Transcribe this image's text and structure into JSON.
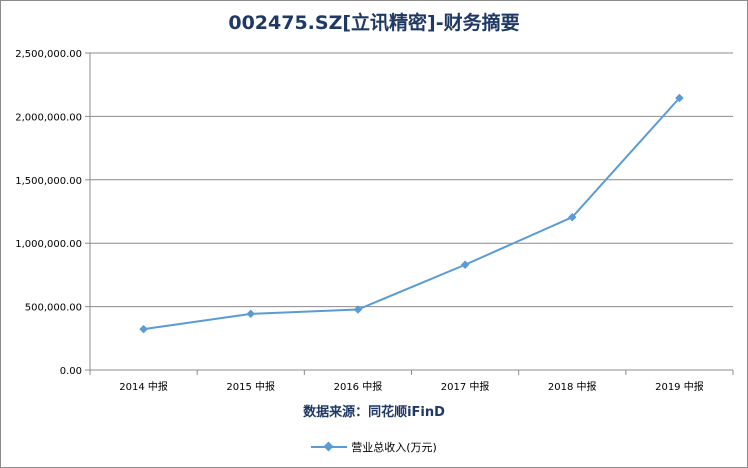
{
  "chart_data": {
    "type": "line",
    "title": "002475.SZ[立讯精密]-财务摘要",
    "xlabel": "数据来源：同花顺iFinD",
    "ylabel": "",
    "categories": [
      "2014 中报",
      "2015 中报",
      "2016 中报",
      "2017 中报",
      "2018 中报",
      "2019 中报"
    ],
    "series": [
      {
        "name": "营业总收入(万元)",
        "values": [
          322000,
          443000,
          477000,
          830000,
          1205000,
          2145000
        ],
        "color": "#5b9bd5",
        "marker": "diamond"
      }
    ],
    "ylim": [
      0,
      2500000
    ],
    "yticks": [
      "0.00",
      "500,000.00",
      "1,000,000.00",
      "1,500,000.00",
      "2,000,000.00",
      "2,500,000.00"
    ],
    "grid": true,
    "legend_position": "bottom"
  }
}
